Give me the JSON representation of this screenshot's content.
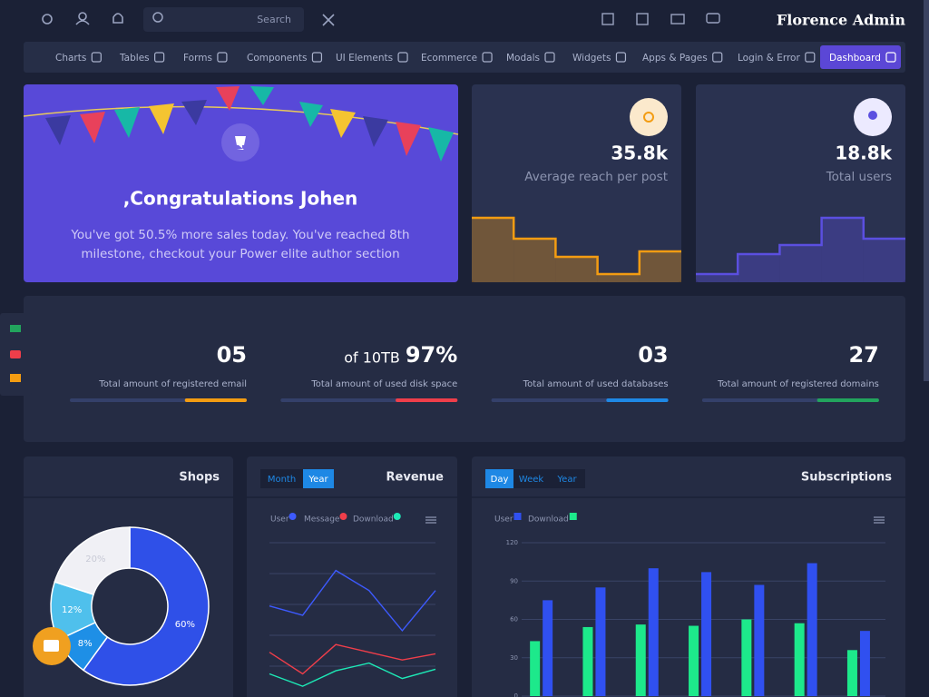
{
  "header": {
    "brand": "Florence Admin",
    "search_placeholder": "Search"
  },
  "nav": {
    "items": [
      "Charts",
      "Tables",
      "Forms",
      "Components",
      "UI Elements",
      "Ecommerce",
      "Modals",
      "Widgets",
      "Apps & Pages",
      "Login & Error",
      "Dashboard"
    ],
    "active": 10
  },
  "hero": {
    "title": ",Congratulations Johen",
    "text_lines": [
      "You've got 50.5% more sales today. You've reached 8th",
      "milestone, checkout your Power elite author section"
    ]
  },
  "stats": [
    {
      "value": "35.8k",
      "label": "Average reach per post",
      "color": "#f39c12",
      "trend": [
        71,
        48,
        28,
        9,
        34
      ]
    },
    {
      "value": "18.8k",
      "label": "Total users",
      "color": "#5b4fe0",
      "trend": [
        9,
        31,
        41,
        71,
        48
      ]
    }
  ],
  "metrics": [
    {
      "value": "05",
      "label": "Total amount of registered email",
      "progress": 35,
      "color": "#f39c12"
    },
    {
      "prefix": "of 10TB",
      "value": "97%",
      "label": "Total amount of used disk space",
      "progress": 35,
      "color": "#ef3e4a"
    },
    {
      "value": "03",
      "label": "Total amount of used databases",
      "progress": 35,
      "color": "#1e88e5"
    },
    {
      "value": "27",
      "label": "Total amount of registered domains",
      "progress": 35,
      "color": "#22a45d"
    }
  ],
  "shops": {
    "type": "pie",
    "title": "Shops",
    "values": [
      60,
      8,
      12,
      20
    ],
    "value_labels": [
      "60%",
      "8%",
      "12%",
      "20%"
    ],
    "colors": [
      "#2f50e8",
      "#1e8fe6",
      "#4fc0ec",
      "#f0f0f5"
    ]
  },
  "revenue": {
    "type": "line",
    "title": "Revenue",
    "tabs": [
      "Month",
      "Year"
    ],
    "active_tab": 1,
    "ylim": [
      0,
      100
    ],
    "gridlines": [
      20,
      40,
      60,
      80,
      100
    ],
    "series": [
      {
        "name": "User",
        "color": "#3d5afe",
        "values": [
          59,
          53,
          82,
          69,
          43,
          69
        ]
      },
      {
        "name": "Message",
        "color": "#ef3e4a",
        "values": [
          29,
          15,
          34,
          29,
          24,
          28
        ]
      },
      {
        "name": "Download",
        "color": "#1de9b6",
        "values": [
          15,
          7,
          17,
          22,
          12,
          18
        ]
      }
    ]
  },
  "subscriptions": {
    "type": "bar",
    "title": "Subscriptions",
    "tabs": [
      "Day",
      "Week",
      "Year"
    ],
    "active_tab": 0,
    "ylim": [
      0,
      120
    ],
    "yticks": [
      0,
      30,
      60,
      90,
      120
    ],
    "series": [
      {
        "name": "User",
        "color": "#3050f0",
        "values": [
          75,
          85,
          100,
          97,
          87,
          104,
          51
        ]
      },
      {
        "name": "Download",
        "color": "#1de98b",
        "values": [
          43,
          54,
          56,
          55,
          60,
          57,
          36
        ]
      }
    ]
  }
}
